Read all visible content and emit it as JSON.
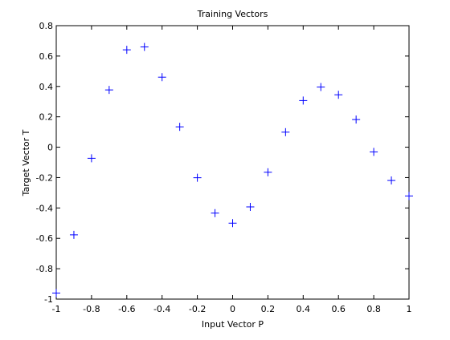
{
  "chart_data": {
    "type": "scatter",
    "title": "Training Vectors",
    "xlabel": "Input Vector P",
    "ylabel": "Target Vector T",
    "xlim": [
      -1,
      1
    ],
    "ylim": [
      -1,
      0.8
    ],
    "xticks": [
      "-1",
      "-0.8",
      "-0.6",
      "-0.4",
      "-0.2",
      "0",
      "0.2",
      "0.4",
      "0.6",
      "0.8",
      "1"
    ],
    "yticks": [
      "-1",
      "-0.8",
      "-0.6",
      "-0.4",
      "-0.2",
      "0",
      "0.2",
      "0.4",
      "0.6",
      "0.8"
    ],
    "grid": false,
    "marker": "+",
    "marker_color": "#0000ff",
    "series": [
      {
        "x": [
          -1,
          -0.9,
          -0.8,
          -0.7,
          -0.6,
          -0.5,
          -0.4,
          -0.3,
          -0.2,
          -0.1,
          0,
          0.1,
          0.2,
          0.3,
          0.4,
          0.5,
          0.6,
          0.7,
          0.8,
          0.9,
          1
        ],
        "values": [
          -0.96,
          -0.577,
          -0.073,
          0.377,
          0.641,
          0.66,
          0.461,
          0.134,
          -0.201,
          -0.434,
          -0.5,
          -0.393,
          -0.165,
          0.099,
          0.307,
          0.396,
          0.345,
          0.182,
          -0.031,
          -0.219,
          -0.321
        ]
      }
    ]
  }
}
